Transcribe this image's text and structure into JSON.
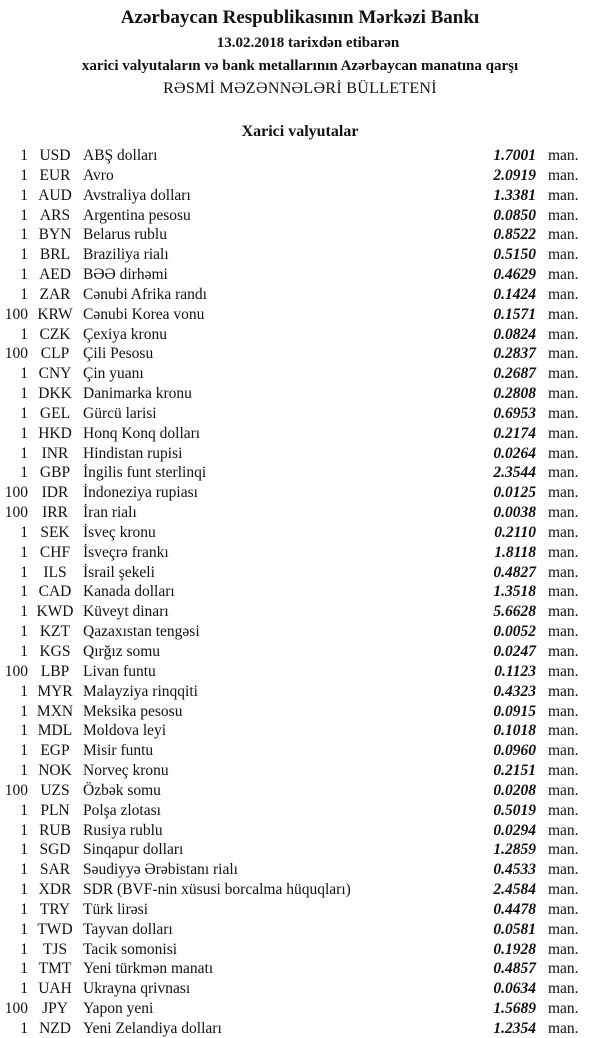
{
  "header": {
    "title": "Azərbaycan Respublikasının Mərkəzi Bankı",
    "date_line": "13.02.2018  tarixdən etibarən",
    "subtitle": "xarici valyutaların və bank metallarının Azərbaycan manatına qarşı",
    "bulletin": "RƏSMİ MƏZƏNNƏLƏRİ BÜLLETENİ"
  },
  "section_title": "Xarici valyutalar",
  "unit_label": "man.",
  "rates": [
    {
      "qty": "1",
      "code": "USD",
      "name": "ABŞ dolları",
      "value": "1.7001"
    },
    {
      "qty": "1",
      "code": "EUR",
      "name": "Avro",
      "value": "2.0919"
    },
    {
      "qty": "1",
      "code": "AUD",
      "name": "Avstraliya dolları",
      "value": "1.3381"
    },
    {
      "qty": "1",
      "code": "ARS",
      "name": "Argentina pesosu",
      "value": "0.0850"
    },
    {
      "qty": "1",
      "code": "BYN",
      "name": "Belarus rublu",
      "value": "0.8522"
    },
    {
      "qty": "1",
      "code": "BRL",
      "name": "Braziliya rialı",
      "value": "0.5150"
    },
    {
      "qty": "1",
      "code": "AED",
      "name": "BƏƏ dirhəmi",
      "value": "0.4629"
    },
    {
      "qty": "1",
      "code": "ZAR",
      "name": "Cənubi Afrika randı",
      "value": "0.1424"
    },
    {
      "qty": "100",
      "code": "KRW",
      "name": "Cənubi Korea vonu",
      "value": "0.1571"
    },
    {
      "qty": "1",
      "code": "CZK",
      "name": "Çexiya kronu",
      "value": "0.0824"
    },
    {
      "qty": "100",
      "code": "CLP",
      "name": "Çili Pesosu",
      "value": "0.2837"
    },
    {
      "qty": "1",
      "code": "CNY",
      "name": "Çin yuanı",
      "value": "0.2687"
    },
    {
      "qty": "1",
      "code": "DKK",
      "name": "Danimarka kronu",
      "value": "0.2808"
    },
    {
      "qty": "1",
      "code": "GEL",
      "name": "Gürcü larisi",
      "value": "0.6953"
    },
    {
      "qty": "1",
      "code": "HKD",
      "name": "Honq Konq dolları",
      "value": "0.2174"
    },
    {
      "qty": "1",
      "code": "INR",
      "name": "Hindistan rupisi",
      "value": "0.0264"
    },
    {
      "qty": "1",
      "code": "GBP",
      "name": "İngilis funt sterlinqi",
      "value": "2.3544"
    },
    {
      "qty": "100",
      "code": "IDR",
      "name": "İndoneziya rupiası",
      "value": "0.0125"
    },
    {
      "qty": "100",
      "code": "IRR",
      "name": "İran rialı",
      "value": "0.0038"
    },
    {
      "qty": "1",
      "code": "SEK",
      "name": "İsveç kronu",
      "value": "0.2110"
    },
    {
      "qty": "1",
      "code": "CHF",
      "name": "İsveçrə frankı",
      "value": "1.8118"
    },
    {
      "qty": "1",
      "code": "ILS",
      "name": "İsrail şekeli",
      "value": "0.4827"
    },
    {
      "qty": "1",
      "code": "CAD",
      "name": "Kanada dolları",
      "value": "1.3518"
    },
    {
      "qty": "1",
      "code": "KWD",
      "name": "Küveyt dinarı",
      "value": "5.6628"
    },
    {
      "qty": "1",
      "code": "KZT",
      "name": "Qazaxıstan tengəsi",
      "value": "0.0052"
    },
    {
      "qty": "1",
      "code": "KGS",
      "name": "Qırğız somu",
      "value": "0.0247"
    },
    {
      "qty": "100",
      "code": "LBP",
      "name": "Livan funtu",
      "value": "0.1123"
    },
    {
      "qty": "1",
      "code": "MYR",
      "name": "Malayziya rinqqiti",
      "value": "0.4323"
    },
    {
      "qty": "1",
      "code": "MXN",
      "name": "Meksika pesosu",
      "value": "0.0915"
    },
    {
      "qty": "1",
      "code": "MDL",
      "name": "Moldova leyi",
      "value": "0.1018"
    },
    {
      "qty": "1",
      "code": "EGP",
      "name": "Misir funtu",
      "value": "0.0960"
    },
    {
      "qty": "1",
      "code": "NOK",
      "name": "Norveç kronu",
      "value": "0.2151"
    },
    {
      "qty": "100",
      "code": "UZS",
      "name": "Özbək somu",
      "value": "0.0208"
    },
    {
      "qty": "1",
      "code": "PLN",
      "name": "Polşa zlotası",
      "value": "0.5019"
    },
    {
      "qty": "1",
      "code": "RUB",
      "name": "Rusiya rublu",
      "value": "0.0294"
    },
    {
      "qty": "1",
      "code": "SGD",
      "name": "Sinqapur dolları",
      "value": "1.2859"
    },
    {
      "qty": "1",
      "code": "SAR",
      "name": "Səudiyyə Ərəbistanı rialı",
      "value": "0.4533"
    },
    {
      "qty": "1",
      "code": "XDR",
      "name": "SDR (BVF-nin xüsusi borcalma hüquqları)",
      "value": "2.4584"
    },
    {
      "qty": "1",
      "code": "TRY",
      "name": "Türk lirəsi",
      "value": "0.4478"
    },
    {
      "qty": "1",
      "code": "TWD",
      "name": "Tayvan dolları",
      "value": "0.0581"
    },
    {
      "qty": "1",
      "code": "TJS",
      "name": "Tacik somonisi",
      "value": "0.1928"
    },
    {
      "qty": "1",
      "code": "TMT",
      "name": "Yeni türkmən manatı",
      "value": "0.4857"
    },
    {
      "qty": "1",
      "code": "UAH",
      "name": "Ukrayna qrivnası",
      "value": "0.0634"
    },
    {
      "qty": "100",
      "code": "JPY",
      "name": "Yapon yeni",
      "value": "1.5689"
    },
    {
      "qty": "1",
      "code": "NZD",
      "name": "Yeni Zelandiya dolları",
      "value": "1.2354"
    }
  ]
}
